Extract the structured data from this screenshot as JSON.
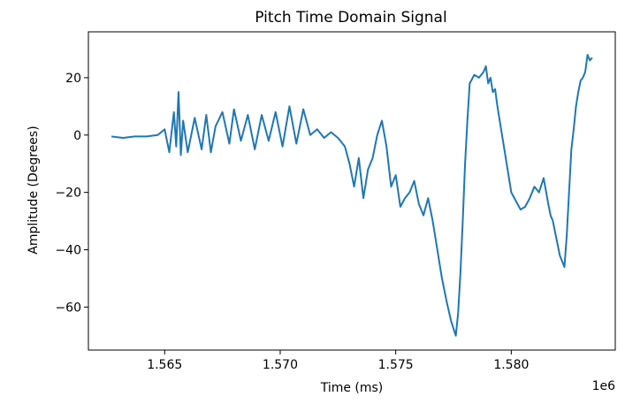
{
  "chart_data": {
    "type": "line",
    "title": "Pitch Time Domain Signal",
    "xlabel": "Time (ms)",
    "ylabel": "Amplitude (Degrees)",
    "x_offset_label": "1e6",
    "xlim": [
      1.5617,
      1.5845
    ],
    "ylim": [
      -75,
      36
    ],
    "xticks": [
      1.565,
      1.57,
      1.575,
      1.58
    ],
    "xtick_labels": [
      "1.565",
      "1.570",
      "1.575",
      "1.580"
    ],
    "yticks": [
      20,
      0,
      -20,
      -40,
      -60
    ],
    "ytick_labels": [
      "20",
      "0",
      "−20",
      "−40",
      "−60"
    ],
    "grid": false,
    "line_color": "#1f77b4",
    "series": [
      {
        "x": [
          1.5627,
          1.5632,
          1.5637,
          1.5642,
          1.5647,
          1.565,
          1.5652,
          1.5654,
          1.5655,
          1.5656,
          1.5657,
          1.5658,
          1.566,
          1.5663,
          1.5666,
          1.5668,
          1.567,
          1.5672,
          1.5675,
          1.5678,
          1.568,
          1.5683,
          1.5686,
          1.5689,
          1.5692,
          1.5695,
          1.5698,
          1.5701,
          1.5704,
          1.5707,
          1.571,
          1.5713,
          1.5716,
          1.5719,
          1.5722,
          1.5725,
          1.5728,
          1.573,
          1.5732,
          1.5734,
          1.5736,
          1.5738,
          1.574,
          1.5742,
          1.5744,
          1.5746,
          1.5748,
          1.575,
          1.5752,
          1.5754,
          1.5756,
          1.5758,
          1.576,
          1.5762,
          1.5764,
          1.5766,
          1.5768,
          1.577,
          1.5772,
          1.5774,
          1.5776,
          1.5777,
          1.5778,
          1.5779,
          1.578,
          1.5781,
          1.5782,
          1.5784,
          1.5786,
          1.5788,
          1.5789,
          1.579,
          1.5791,
          1.5792,
          1.5793,
          1.5794,
          1.5795,
          1.5796,
          1.5797,
          1.5798,
          1.5799,
          1.58,
          1.5802,
          1.5804,
          1.5806,
          1.5808,
          1.581,
          1.5812,
          1.5814,
          1.5816,
          1.5817,
          1.5818,
          1.5819,
          1.582,
          1.5821,
          1.5822,
          1.5823,
          1.5824,
          1.5825,
          1.5826,
          1.5827,
          1.5828,
          1.5829,
          1.583,
          1.5831,
          1.5832,
          1.5833,
          1.5834,
          1.5835
        ],
        "y": [
          -0.5,
          -1,
          -0.5,
          -0.5,
          0,
          2,
          -6,
          8,
          -4,
          15,
          -7,
          5,
          -6,
          6,
          -5,
          7,
          -6,
          3,
          8,
          -3,
          9,
          -2,
          7,
          -5,
          7,
          -2,
          8,
          -4,
          10,
          -3,
          9,
          0,
          2,
          -1,
          1,
          -1,
          -4,
          -10,
          -18,
          -8,
          -22,
          -12,
          -8,
          0,
          5,
          -4,
          -18,
          -14,
          -25,
          -22,
          -20,
          -16,
          -24,
          -28,
          -22,
          -30,
          -40,
          -50,
          -58,
          -65,
          -70,
          -62,
          -48,
          -30,
          -10,
          5,
          18,
          21,
          20,
          22,
          24,
          18,
          20,
          15,
          16,
          10,
          5,
          0,
          -5,
          -10,
          -15,
          -20,
          -23,
          -26,
          -25,
          -22,
          -18,
          -20,
          -15,
          -24,
          -28,
          -30,
          -34,
          -38,
          -42,
          -44,
          -46,
          -35,
          -20,
          -5,
          2,
          10,
          15,
          19,
          20,
          22,
          28,
          26,
          27
        ]
      }
    ]
  }
}
